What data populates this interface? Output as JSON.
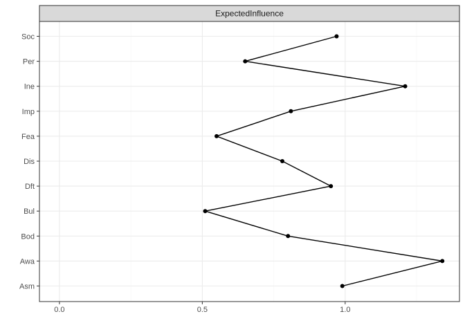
{
  "chart_data": {
    "type": "line",
    "facet_title": "ExpectedInfluence",
    "categories": [
      "Asm",
      "Awa",
      "Bod",
      "Bul",
      "Dft",
      "Dis",
      "Fea",
      "Imp",
      "Ine",
      "Per",
      "Soc"
    ],
    "values": [
      0.99,
      1.34,
      0.8,
      0.51,
      0.95,
      0.78,
      0.55,
      0.81,
      1.21,
      0.65,
      0.97
    ],
    "x_ticks": [
      {
        "value": 0.0,
        "label": "0.0"
      },
      {
        "value": 0.5,
        "label": "0.5"
      },
      {
        "value": 1.0,
        "label": "1.0"
      }
    ],
    "xlim": [
      -0.07,
      1.4
    ],
    "xlabel": "",
    "ylabel": "",
    "grid": true,
    "legend": "none",
    "colors": {
      "line": "#000000",
      "point": "#000000",
      "grid_major": "#ebebeb",
      "grid_minor": "#f5f5f5",
      "strip_bg": "#d9d9d9",
      "border": "#333333"
    }
  }
}
